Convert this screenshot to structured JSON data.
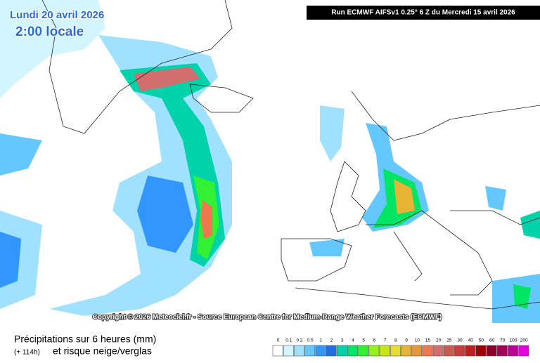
{
  "header": {
    "date": "Lundi 20 avril 2026",
    "time": "2:00 locale",
    "run": "Run ECMWF AIFSv1 0.25° 6 Z du Mercredi 15 avril 2026"
  },
  "copyright": "Copyright © 2026 Meteociel.fr - Source European Centre for Medium-Range Weather Forecasts (ECMWF)",
  "legend": {
    "title": "Précipitations sur 6 heures (mm)",
    "lead": "(+ 114h)",
    "subtitle": "et risque neige/verglas",
    "labels": [
      "0",
      "0.1",
      "0.2",
      "0.5",
      "1",
      "2",
      "3",
      "4",
      "5",
      "6",
      "7",
      "8",
      "9",
      "10",
      "15",
      "20",
      "25",
      "30",
      "40",
      "50",
      "60",
      "70",
      "100",
      "200"
    ],
    "colors": [
      "#ffffff",
      "#d2f5ff",
      "#a0e1ff",
      "#64c8ff",
      "#3296ff",
      "#1e6ee6",
      "#00d2aa",
      "#00e664",
      "#32f032",
      "#96f01e",
      "#c8e614",
      "#e6dc32",
      "#e6b432",
      "#e6963c",
      "#f07850",
      "#d26e6e",
      "#c85a50",
      "#c83c3c",
      "#be1e1e",
      "#a00000",
      "#8c0028",
      "#a0005a",
      "#be0096",
      "#e600dc"
    ]
  }
}
